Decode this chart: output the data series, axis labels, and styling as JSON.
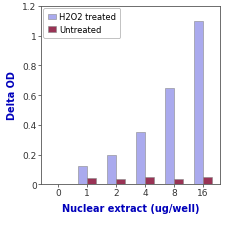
{
  "categories": [
    "0",
    "1",
    "2",
    "4",
    "8",
    "16"
  ],
  "h2o2_values": [
    0.0,
    0.12,
    0.2,
    0.35,
    0.65,
    1.1
  ],
  "untreated_values": [
    0.0,
    0.04,
    0.035,
    0.05,
    0.035,
    0.05
  ],
  "h2o2_color": "#aaaaee",
  "untreated_color": "#993355",
  "xlabel": "Nuclear extract (ug/well)",
  "ylabel": "Delta OD",
  "ylim": [
    0,
    1.2
  ],
  "yticks": [
    0,
    0.2,
    0.4,
    0.6,
    0.8,
    1.0,
    1.2
  ],
  "yticklabels": [
    "0",
    "0.2",
    "0.4",
    "0.6",
    "0.8",
    "1",
    "1.2"
  ],
  "legend_h2o2": "H2O2 treated",
  "legend_untreated": "Untreated",
  "bar_width": 0.32,
  "xlabel_color": "#0000bb",
  "ylabel_color": "#0000bb",
  "label_fontsize": 7,
  "tick_fontsize": 6.5,
  "legend_fontsize": 6.0
}
